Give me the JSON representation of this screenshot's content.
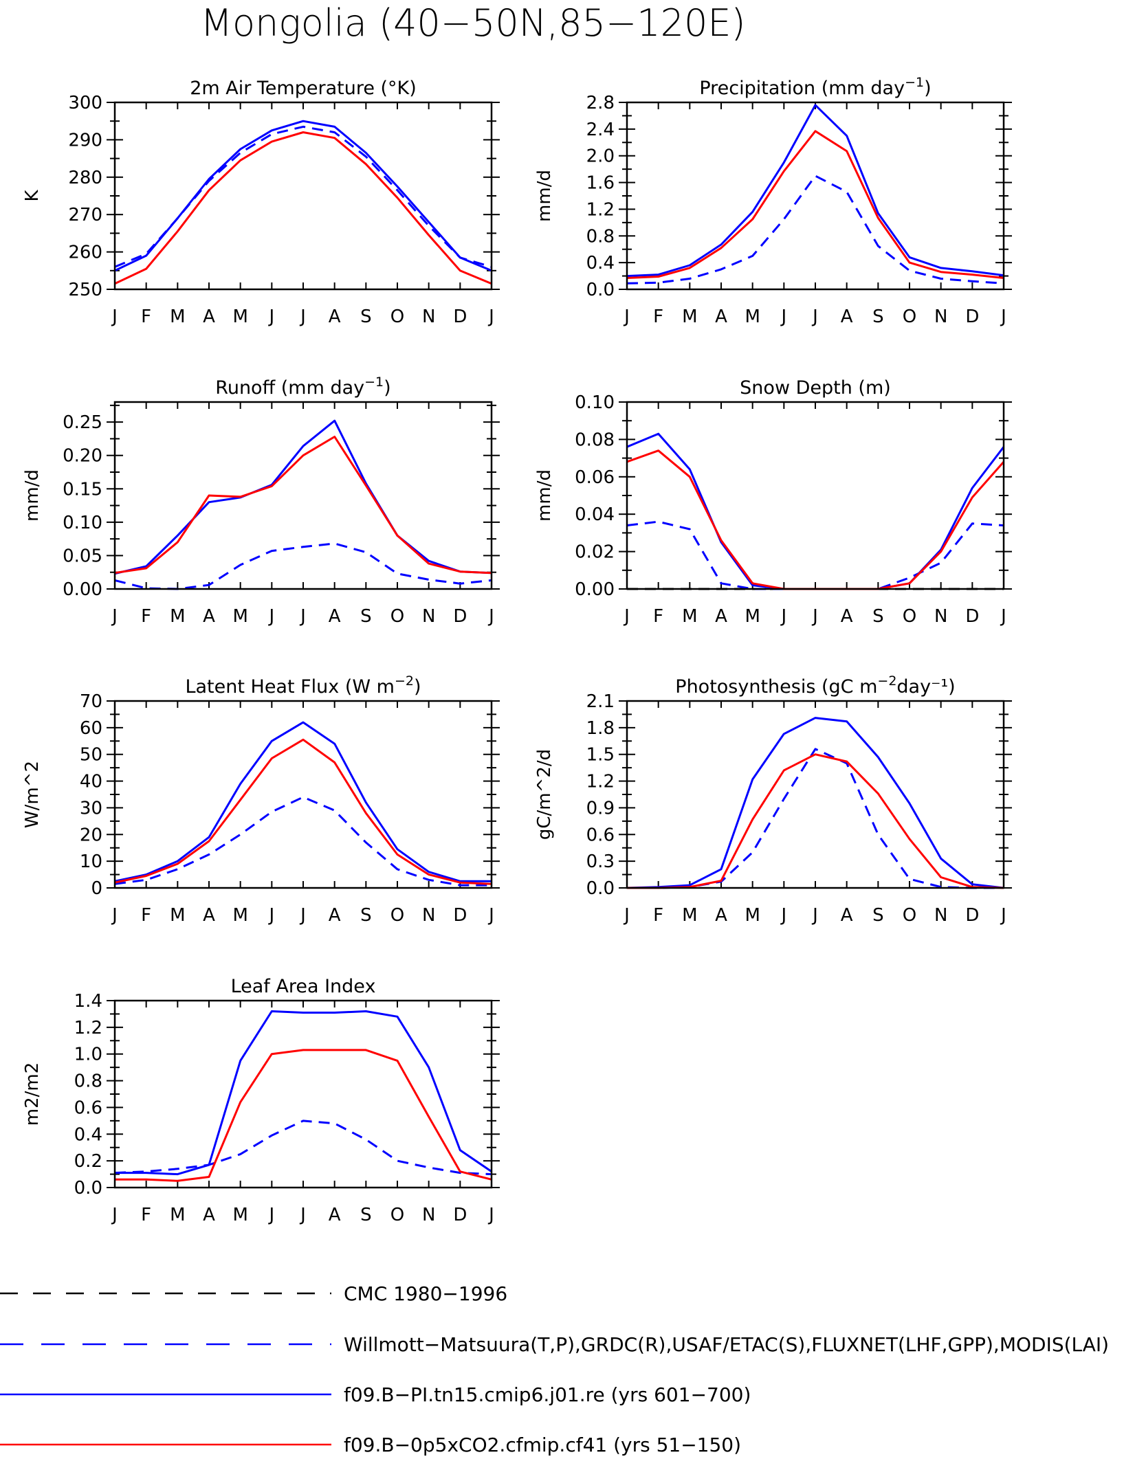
{
  "title": "Mongolia (40−50N,85−120E)",
  "months": [
    "J",
    "F",
    "M",
    "A",
    "M",
    "J",
    "J",
    "A",
    "S",
    "O",
    "N",
    "D",
    "J"
  ],
  "colors": {
    "model_blue": "#0000ff",
    "model_red": "#ff0000",
    "obs_black": "#000000",
    "obs_blue": "#0000ff"
  },
  "legend": [
    {
      "label": "CMC 1980−1996",
      "color": "#000000",
      "dash": true
    },
    {
      "label": "Willmott−Matsuura(T,P),GRDC(R),USAF/ETAC(S),FLUXNET(LHF,GPP),MODIS(LAI)",
      "color": "#0000ff",
      "dash": true
    },
    {
      "label": "f09.B−PI.tn15.cmip6.j01.re (yrs 601−700)",
      "color": "#0000ff",
      "dash": false
    },
    {
      "label": "f09.B−0p5xCO2.cfmip.cf41 (yrs 51−150)",
      "color": "#ff0000",
      "dash": false
    }
  ],
  "chart_data": [
    {
      "type": "line",
      "title_main": "2m Air Temperature (°K)",
      "title_sup": "",
      "title_tail": "",
      "ylabel": "K",
      "ylim": [
        250,
        300
      ],
      "yticks": [
        250,
        260,
        270,
        280,
        290,
        300
      ],
      "yticklabels": [
        "250",
        "260",
        "270",
        "280",
        "290",
        "300"
      ],
      "series": [
        {
          "dash": true,
          "color": "#0000ff",
          "values": [
            256,
            259.5,
            269,
            279,
            286.5,
            291.5,
            293.5,
            292,
            285.5,
            276.5,
            267,
            258.5,
            256
          ]
        },
        {
          "dash": false,
          "color": "#0000ff",
          "values": [
            255,
            259,
            269,
            279.5,
            287.5,
            292.5,
            295,
            293.5,
            286.5,
            277.5,
            268,
            258.5,
            255
          ]
        },
        {
          "dash": false,
          "color": "#ff0000",
          "values": [
            251.5,
            255.5,
            265.5,
            276.5,
            284.5,
            289.5,
            292,
            290.5,
            283.5,
            274.5,
            264.5,
            255,
            251.5
          ]
        }
      ]
    },
    {
      "type": "line",
      "title_main": "Precipitation (mm day",
      "title_sup": "−1",
      "title_tail": ")",
      "ylabel": "mm/d",
      "ylim": [
        0,
        2.8
      ],
      "yticks": [
        0,
        0.4,
        0.8,
        1.2,
        1.6,
        2.0,
        2.4,
        2.8
      ],
      "yticklabels": [
        "0.0",
        "0.4",
        "0.8",
        "1.2",
        "1.6",
        "2.0",
        "2.4",
        "2.8"
      ],
      "series": [
        {
          "dash": true,
          "color": "#0000ff",
          "values": [
            0.09,
            0.1,
            0.16,
            0.3,
            0.5,
            1.05,
            1.7,
            1.46,
            0.65,
            0.28,
            0.16,
            0.12,
            0.09
          ]
        },
        {
          "dash": false,
          "color": "#0000ff",
          "values": [
            0.2,
            0.22,
            0.36,
            0.67,
            1.16,
            1.9,
            2.76,
            2.3,
            1.14,
            0.48,
            0.32,
            0.27,
            0.21
          ]
        },
        {
          "dash": false,
          "color": "#ff0000",
          "values": [
            0.17,
            0.19,
            0.32,
            0.62,
            1.05,
            1.77,
            2.37,
            2.07,
            1.07,
            0.4,
            0.26,
            0.22,
            0.17
          ]
        }
      ]
    },
    {
      "type": "line",
      "title_main": "Runoff (mm day",
      "title_sup": "−1",
      "title_tail": ")",
      "ylabel": "mm/d",
      "ylim": [
        0,
        0.28
      ],
      "yticks": [
        0,
        0.05,
        0.1,
        0.15,
        0.2,
        0.25
      ],
      "yticklabels": [
        "0.00",
        "0.05",
        "0.10",
        "0.15",
        "0.20",
        "0.25"
      ],
      "series": [
        {
          "dash": true,
          "color": "#0000ff",
          "values": [
            0.013,
            0.001,
            0.0,
            0.006,
            0.036,
            0.057,
            0.063,
            0.068,
            0.055,
            0.023,
            0.014,
            0.008,
            0.013
          ]
        },
        {
          "dash": false,
          "color": "#0000ff",
          "values": [
            0.023,
            0.034,
            0.08,
            0.13,
            0.137,
            0.156,
            0.214,
            0.252,
            0.158,
            0.08,
            0.042,
            0.026,
            0.024
          ]
        },
        {
          "dash": false,
          "color": "#ff0000",
          "values": [
            0.024,
            0.031,
            0.07,
            0.14,
            0.138,
            0.154,
            0.2,
            0.228,
            0.155,
            0.08,
            0.038,
            0.026,
            0.024
          ]
        }
      ]
    },
    {
      "type": "line",
      "title_main": "Snow Depth (m)",
      "title_sup": "",
      "title_tail": "",
      "ylabel": "mm/d",
      "ylim": [
        0,
        0.1
      ],
      "yticks": [
        0,
        0.02,
        0.04,
        0.06,
        0.08,
        0.1
      ],
      "yticklabels": [
        "0.00",
        "0.02",
        "0.04",
        "0.06",
        "0.08",
        "0.10"
      ],
      "series": [
        {
          "dash": true,
          "color": "#000000",
          "values": [
            0,
            0,
            0,
            0,
            0,
            0,
            0,
            0,
            0,
            0,
            0,
            0,
            0
          ]
        },
        {
          "dash": true,
          "color": "#0000ff",
          "values": [
            0.034,
            0.036,
            0.032,
            0.003,
            0.0,
            0.0,
            0.0,
            0.0,
            0.0,
            0.006,
            0.014,
            0.035,
            0.034
          ]
        },
        {
          "dash": false,
          "color": "#0000ff",
          "values": [
            0.076,
            0.083,
            0.064,
            0.025,
            0.002,
            0.0,
            0.0,
            0.0,
            0.0,
            0.003,
            0.021,
            0.054,
            0.076
          ]
        },
        {
          "dash": false,
          "color": "#ff0000",
          "values": [
            0.068,
            0.074,
            0.06,
            0.026,
            0.003,
            0.0,
            0.0,
            0.0,
            0.0,
            0.003,
            0.02,
            0.049,
            0.068
          ]
        }
      ]
    },
    {
      "type": "line",
      "title_main": "Latent Heat Flux (W m",
      "title_sup": "−2",
      "title_tail": ")",
      "ylabel": "W/m^2",
      "ylim": [
        0,
        70
      ],
      "yticks": [
        0,
        10,
        20,
        30,
        40,
        50,
        60,
        70
      ],
      "yticklabels": [
        "0",
        "10",
        "20",
        "30",
        "40",
        "50",
        "60",
        "70"
      ],
      "series": [
        {
          "dash": true,
          "color": "#0000ff",
          "values": [
            1.5,
            3,
            7,
            12.5,
            20,
            28.5,
            34,
            29,
            17,
            7,
            3,
            1,
            1
          ]
        },
        {
          "dash": false,
          "color": "#0000ff",
          "values": [
            2.5,
            5,
            10,
            19,
            39,
            55,
            62,
            54,
            32,
            14.5,
            6,
            2.5,
            2.5
          ]
        },
        {
          "dash": false,
          "color": "#ff0000",
          "values": [
            2,
            4.5,
            9,
            17.5,
            33,
            48.5,
            55.5,
            47,
            28,
            12.5,
            5,
            2,
            1.5
          ]
        }
      ]
    },
    {
      "type": "line",
      "title_main": "Photosynthesis (gC m",
      "title_sup": "−2",
      "title_tail": "day⁻¹)",
      "ylabel": "gC/m^2/d",
      "ylim": [
        0,
        2.1
      ],
      "yticks": [
        0,
        0.3,
        0.6,
        0.9,
        1.2,
        1.5,
        1.8,
        2.1
      ],
      "yticklabels": [
        "0.0",
        "0.3",
        "0.6",
        "0.9",
        "1.2",
        "1.5",
        "1.8",
        "2.1"
      ],
      "series": [
        {
          "dash": true,
          "color": "#0000ff",
          "values": [
            0.0,
            0.0,
            0.01,
            0.07,
            0.4,
            1.0,
            1.56,
            1.4,
            0.6,
            0.1,
            0.01,
            0.0,
            0.0
          ]
        },
        {
          "dash": false,
          "color": "#0000ff",
          "values": [
            0.0,
            0.01,
            0.03,
            0.21,
            1.22,
            1.73,
            1.91,
            1.87,
            1.47,
            0.95,
            0.33,
            0.04,
            0.0
          ]
        },
        {
          "dash": false,
          "color": "#ff0000",
          "values": [
            0.0,
            0.0,
            0.01,
            0.08,
            0.77,
            1.32,
            1.5,
            1.42,
            1.06,
            0.55,
            0.12,
            0.01,
            0.0
          ]
        }
      ]
    },
    {
      "type": "line",
      "title_main": "Leaf Area Index",
      "title_sup": "",
      "title_tail": "",
      "ylabel": "m2/m2",
      "ylim": [
        0,
        1.4
      ],
      "yticks": [
        0,
        0.2,
        0.4,
        0.6,
        0.8,
        1.0,
        1.2,
        1.4
      ],
      "yticklabels": [
        "0.0",
        "0.2",
        "0.4",
        "0.6",
        "0.8",
        "1.0",
        "1.2",
        "1.4"
      ],
      "series": [
        {
          "dash": true,
          "color": "#0000ff",
          "values": [
            0.11,
            0.12,
            0.14,
            0.17,
            0.25,
            0.39,
            0.5,
            0.48,
            0.36,
            0.2,
            0.15,
            0.11,
            0.1
          ]
        },
        {
          "dash": false,
          "color": "#0000ff",
          "values": [
            0.11,
            0.11,
            0.1,
            0.17,
            0.95,
            1.32,
            1.31,
            1.31,
            1.32,
            1.28,
            0.9,
            0.28,
            0.12
          ]
        },
        {
          "dash": false,
          "color": "#ff0000",
          "values": [
            0.06,
            0.06,
            0.05,
            0.08,
            0.64,
            1.0,
            1.03,
            1.03,
            1.03,
            0.95,
            0.53,
            0.12,
            0.06
          ]
        }
      ]
    }
  ]
}
